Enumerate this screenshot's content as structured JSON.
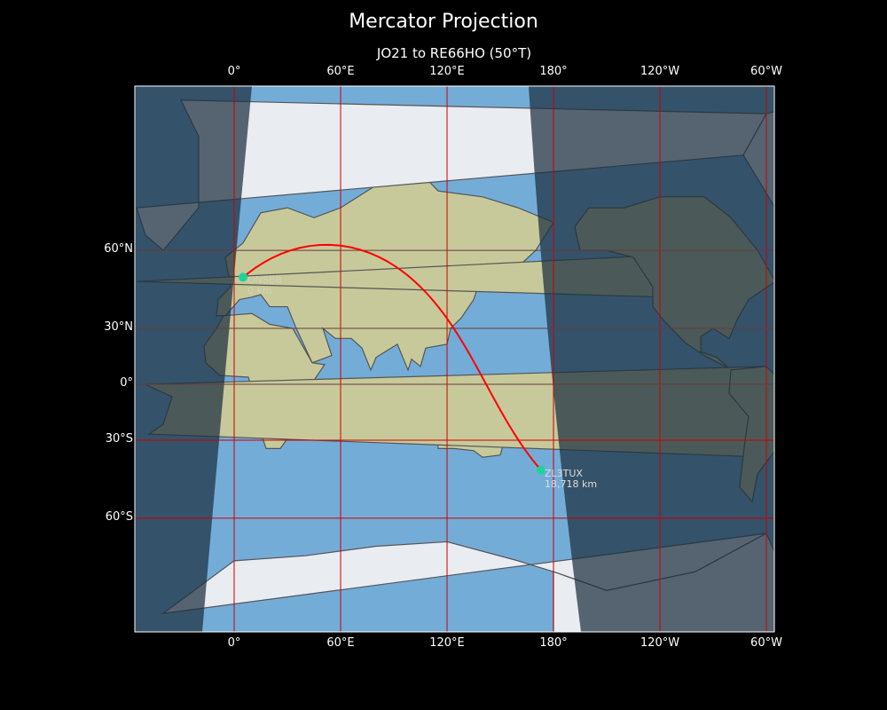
{
  "title": "Mercator Projection",
  "subtitle": "JO21 to RE66HO (50°T)",
  "colors": {
    "background": "#000000",
    "path": "#ff0000",
    "grid": "#cc0000",
    "marker": "#1fd39a",
    "night_overlay": "#1c2f3e",
    "ocean": "#74acd8"
  },
  "map": {
    "projection": "Mercator",
    "central_longitude": 124,
    "x_ticks": [
      "0°",
      "60°E",
      "120°E",
      "180°",
      "120°W",
      "60°W"
    ],
    "x_tick_lons": [
      0,
      60,
      120,
      180,
      240,
      300
    ],
    "y_ticks": [
      "60°N",
      "30°N",
      "0°",
      "30°S",
      "60°S"
    ],
    "y_tick_lats": [
      60,
      30,
      0,
      -30,
      -60
    ]
  },
  "path": {
    "start": {
      "callsign": "ON8BB",
      "distance": "0 km",
      "lat": 51.5,
      "lon": 5
    },
    "end": {
      "callsign": "ZL3TUX",
      "distance": "18,718 km",
      "lat": -43.5,
      "lon": 173
    }
  }
}
